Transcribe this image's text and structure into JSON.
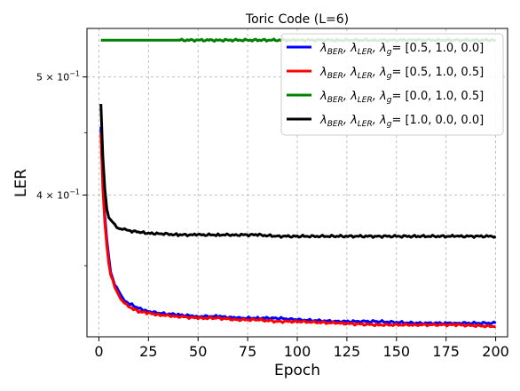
{
  "chart_data": {
    "type": "line",
    "title": "Toric Code (L=6)",
    "xlabel": "Epoch",
    "ylabel": "LER",
    "xlim": [
      -6,
      206
    ],
    "ylim": [
      0.306,
      0.548
    ],
    "yscale": "log",
    "grid": true,
    "legend_position": "top-right",
    "x_ticks": [
      {
        "value": 0,
        "label": "0"
      },
      {
        "value": 25,
        "label": "25"
      },
      {
        "value": 50,
        "label": "50"
      },
      {
        "value": 75,
        "label": "75"
      },
      {
        "value": 100,
        "label": "100"
      },
      {
        "value": 125,
        "label": "125"
      },
      {
        "value": 150,
        "label": "150"
      },
      {
        "value": 175,
        "label": "175"
      },
      {
        "value": 200,
        "label": "200"
      }
    ],
    "y_ticks": [
      {
        "value": 0.4,
        "label_base": "4 × 10",
        "label_exp": "−1"
      },
      {
        "value": 0.5,
        "label_base": "5 × 10",
        "label_exp": "−1"
      }
    ],
    "series": [
      {
        "name": "λBER, λLER, λg = [0.5, 1.0, 0.0]",
        "legend_params": "= [0.5, 1.0, 0.0]",
        "color": "#0000ff",
        "x": [
          1,
          2,
          3,
          4,
          5,
          6,
          8,
          10,
          12,
          15,
          20,
          25,
          30,
          40,
          50,
          60,
          70,
          80,
          90,
          100,
          120,
          140,
          160,
          180,
          200
        ],
        "y": [
          0.455,
          0.41,
          0.385,
          0.367,
          0.355,
          0.346,
          0.338,
          0.333,
          0.329,
          0.326,
          0.323,
          0.321,
          0.32,
          0.319,
          0.318,
          0.318,
          0.317,
          0.317,
          0.317,
          0.316,
          0.315,
          0.315,
          0.314,
          0.314,
          0.314
        ]
      },
      {
        "name": "λBER, λLER, λg = [0.5, 1.0, 0.5]",
        "legend_params": "= [0.5, 1.0, 0.5]",
        "color": "#ff0000",
        "x": [
          1,
          2,
          3,
          4,
          5,
          6,
          8,
          10,
          12,
          15,
          20,
          25,
          30,
          40,
          50,
          60,
          70,
          80,
          90,
          100,
          120,
          140,
          160,
          180,
          200
        ],
        "y": [
          0.45,
          0.405,
          0.38,
          0.363,
          0.352,
          0.344,
          0.336,
          0.331,
          0.327,
          0.324,
          0.321,
          0.32,
          0.319,
          0.318,
          0.317,
          0.317,
          0.316,
          0.316,
          0.315,
          0.315,
          0.314,
          0.313,
          0.313,
          0.313,
          0.312
        ]
      },
      {
        "name": "λBER, λLER, λg = [0.0, 1.0, 0.5]",
        "legend_params": "= [0.0, 1.0, 0.5]",
        "color": "#008000",
        "x": [
          1,
          10,
          20,
          40,
          60,
          80,
          100,
          120,
          140,
          160,
          180,
          200
        ],
        "y": [
          0.536,
          0.536,
          0.536,
          0.536,
          0.536,
          0.536,
          0.536,
          0.536,
          0.536,
          0.536,
          0.536,
          0.536
        ]
      },
      {
        "name": "λBER, λLER, λg = [1.0, 0.0, 0.0]",
        "legend_params": "= [1.0, 0.0, 0.0]",
        "color": "#000000",
        "x": [
          1,
          2,
          3,
          4,
          5,
          6,
          8,
          10,
          12,
          15,
          20,
          25,
          30,
          40,
          50,
          60,
          70,
          80,
          90,
          100,
          120,
          140,
          160,
          180,
          200
        ],
        "y": [
          0.475,
          0.43,
          0.405,
          0.39,
          0.384,
          0.381,
          0.378,
          0.376,
          0.375,
          0.374,
          0.373,
          0.372,
          0.372,
          0.371,
          0.371,
          0.371,
          0.371,
          0.371,
          0.37,
          0.37,
          0.37,
          0.37,
          0.37,
          0.37,
          0.37
        ]
      }
    ]
  }
}
